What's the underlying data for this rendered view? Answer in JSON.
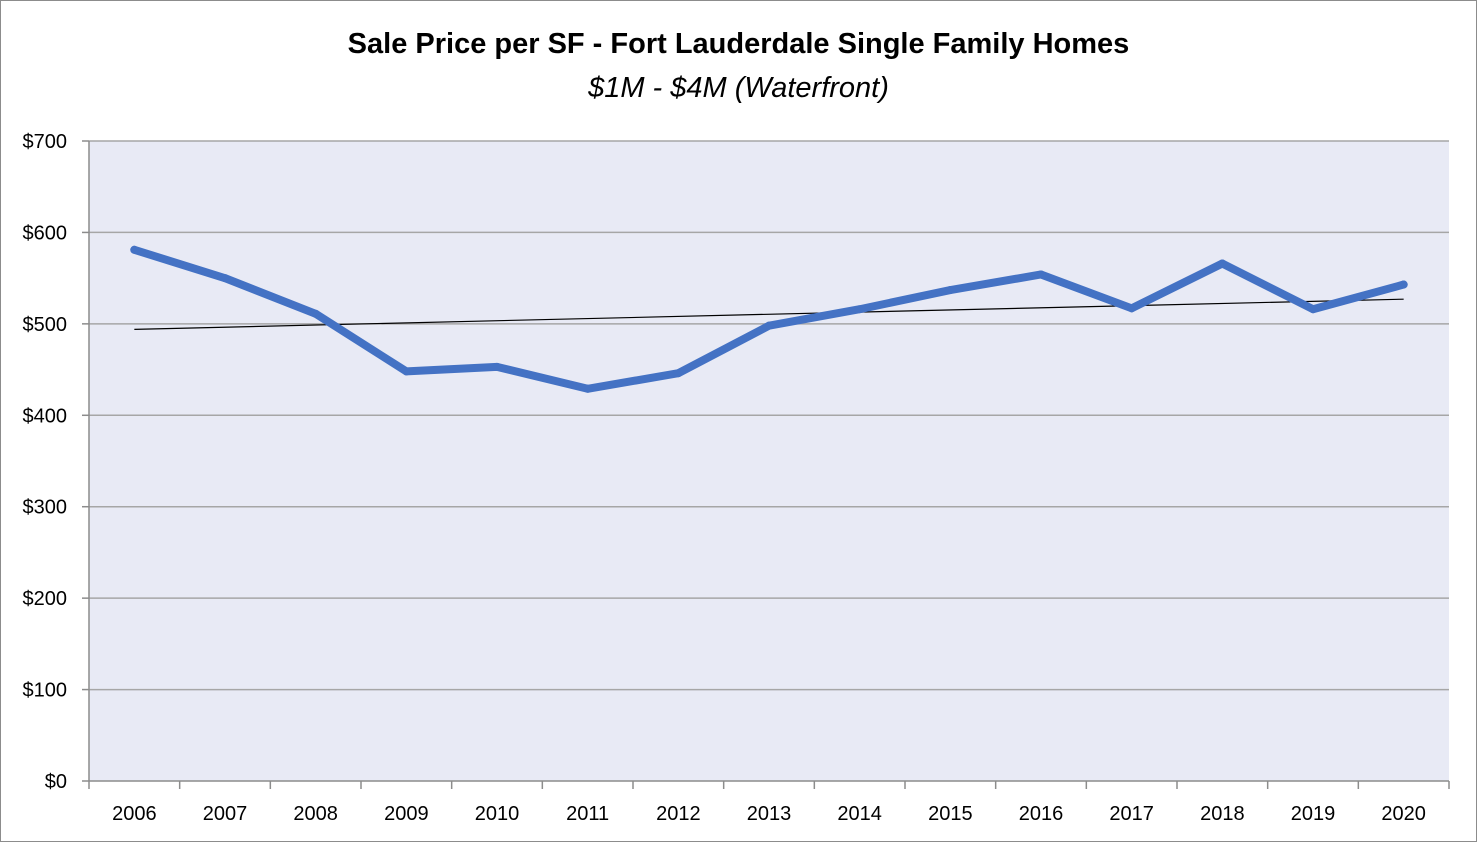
{
  "chart_data": {
    "type": "line",
    "title": "Sale Price per SF - Fort Lauderdale Single Family Homes",
    "subtitle": "$1M - $4M (Waterfront)",
    "categories": [
      "2006",
      "2007",
      "2008",
      "2009",
      "2010",
      "2011",
      "2012",
      "2013",
      "2014",
      "2015",
      "2016",
      "2017",
      "2018",
      "2019",
      "2020"
    ],
    "series": [
      {
        "values": [
          581,
          550,
          511,
          448,
          453,
          429,
          446,
          498,
          516,
          537,
          554,
          517,
          566,
          516,
          543
        ],
        "color": "#4472c4"
      }
    ],
    "trendline": {
      "type": "linear",
      "start": 494,
      "end": 527,
      "color": "#000000"
    },
    "ylim": [
      0,
      700
    ],
    "yticks": [
      0,
      100,
      200,
      300,
      400,
      500,
      600,
      700
    ],
    "ytick_labels": [
      "$0",
      "$100",
      "$200",
      "$300",
      "$400",
      "$500",
      "$600",
      "$700"
    ],
    "grid": true,
    "plot_background": "#e8eaf5",
    "gridline_color": "#a6a6a6",
    "legend": "none"
  }
}
